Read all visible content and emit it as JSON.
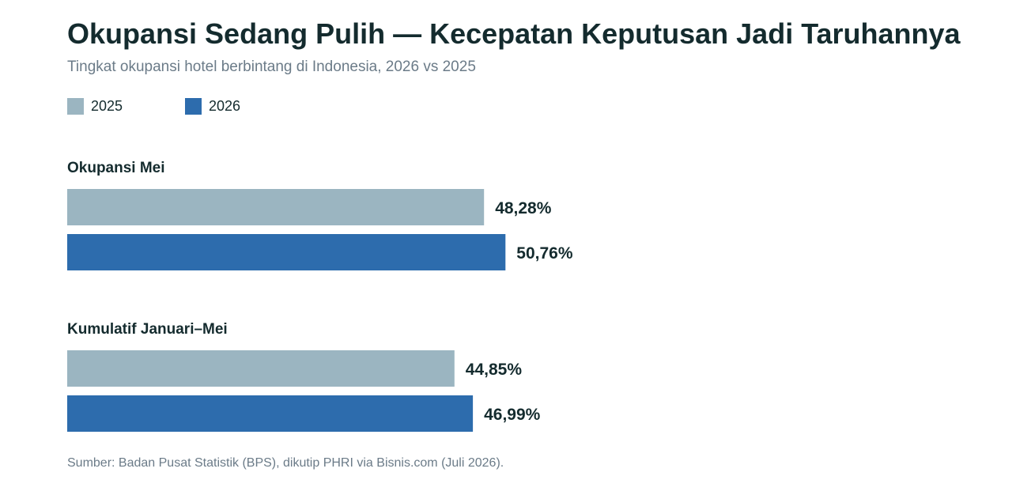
{
  "header": {
    "title": "Okupansi Sedang Pulih — Kecepatan Keputusan Jadi Taruhannya",
    "subtitle": "Tingkat okupansi hotel berbintang di Indonesia, 2026 vs 2025"
  },
  "legend": [
    {
      "label": "2025",
      "color": "#9bb5c1"
    },
    {
      "label": "2026",
      "color": "#2d6cad"
    }
  ],
  "footer": {
    "source": "Sumber: Badan Pusat Statistik (BPS), dikutip PHRI via Bisnis.com (Juli 2026)."
  },
  "chart_data": {
    "type": "bar",
    "orientation": "horizontal",
    "categories": [
      "Okupansi Mei",
      "Kumulatif Januari–Mei"
    ],
    "series": [
      {
        "name": "2025",
        "color": "#9bb5c1",
        "values": [
          48.28,
          44.85
        ],
        "labels": [
          "48,28%",
          "44,85%"
        ]
      },
      {
        "name": "2026",
        "color": "#2d6cad",
        "values": [
          50.76,
          46.99
        ],
        "labels": [
          "50,76%",
          "46,99%"
        ]
      }
    ],
    "unit": "%",
    "xlim": [
      0,
      100
    ],
    "grid": false,
    "legend_position": "top-left"
  }
}
